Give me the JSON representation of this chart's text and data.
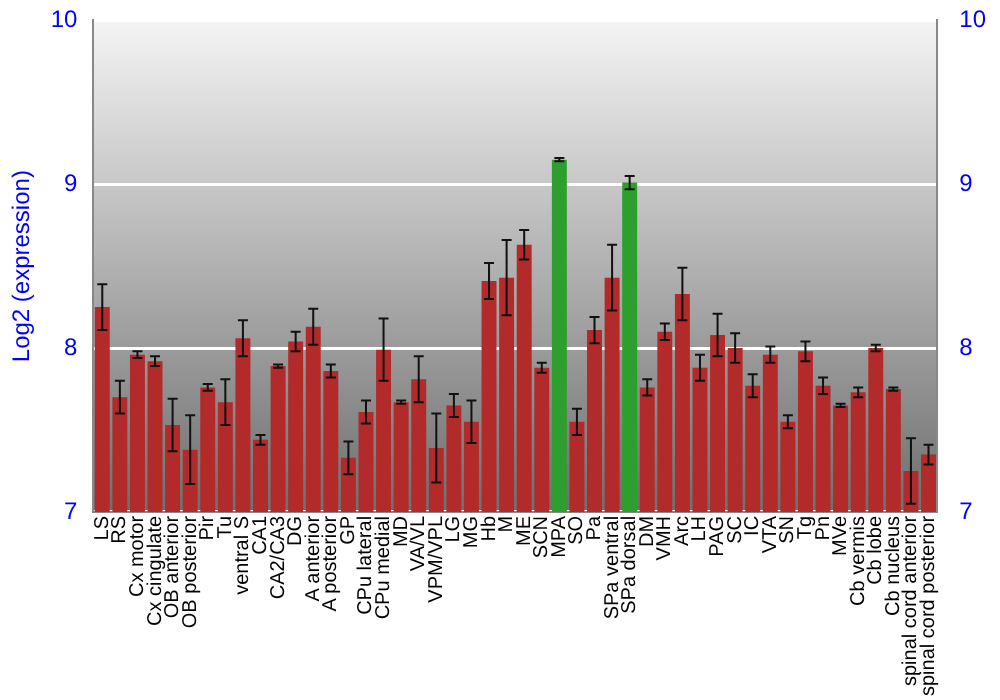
{
  "chart_data": {
    "type": "bar",
    "ylabel": "Log2 (expression)",
    "categories": [
      "LS",
      "RS",
      "Cx motor",
      "Cx cingulate",
      "OB anterior",
      "OB posterior",
      "Pir",
      "Tu",
      "ventral S",
      "CA1",
      "CA2/CA3",
      "DG",
      "A anterior",
      "A posterior",
      "GP",
      "CPu lateral",
      "CPu medial",
      "MD",
      "VA/VL",
      "VPM/VPL",
      "LG",
      "MG",
      "Hb",
      "M",
      "ME",
      "SCN",
      "MPA",
      "SO",
      "Pa",
      "SPa ventral",
      "SPa dorsal",
      "DM",
      "VMH",
      "Arc",
      "LH",
      "PAG",
      "SC",
      "IC",
      "VTA",
      "SN",
      "Tg",
      "Pn",
      "MVe",
      "Cb vermis",
      "Cb lobe",
      "Cb nucleus",
      "spinal cord anterior",
      "spinal cord posterior"
    ],
    "values": [
      8.25,
      7.7,
      7.96,
      7.92,
      7.53,
      7.38,
      7.76,
      7.67,
      8.06,
      7.44,
      7.89,
      8.04,
      8.13,
      7.86,
      7.33,
      7.61,
      7.99,
      7.67,
      7.81,
      7.39,
      7.65,
      7.55,
      8.41,
      8.43,
      8.63,
      7.88,
      9.15,
      7.55,
      8.11,
      8.43,
      9.01,
      7.76,
      8.1,
      8.33,
      7.88,
      8.08,
      8.0,
      7.77,
      7.96,
      7.55,
      7.98,
      7.77,
      7.65,
      7.73,
      8.0,
      7.75,
      7.25,
      7.35
    ],
    "errors": [
      0.14,
      0.1,
      0.02,
      0.03,
      0.16,
      0.21,
      0.02,
      0.14,
      0.11,
      0.03,
      0.01,
      0.06,
      0.11,
      0.04,
      0.1,
      0.07,
      0.19,
      0.01,
      0.14,
      0.21,
      0.07,
      0.13,
      0.11,
      0.23,
      0.09,
      0.03,
      0.01,
      0.08,
      0.08,
      0.2,
      0.04,
      0.05,
      0.05,
      0.16,
      0.08,
      0.13,
      0.09,
      0.07,
      0.05,
      0.04,
      0.06,
      0.05,
      0.01,
      0.03,
      0.02,
      0.01,
      0.2,
      0.06
    ],
    "colors": [
      "#b22a2a",
      "#b22a2a",
      "#b22a2a",
      "#b22a2a",
      "#b22a2a",
      "#b22a2a",
      "#b22a2a",
      "#b22a2a",
      "#b22a2a",
      "#b22a2a",
      "#b22a2a",
      "#b22a2a",
      "#b22a2a",
      "#b22a2a",
      "#b22a2a",
      "#b22a2a",
      "#b22a2a",
      "#b22a2a",
      "#b22a2a",
      "#b22a2a",
      "#b22a2a",
      "#b22a2a",
      "#b22a2a",
      "#b22a2a",
      "#b22a2a",
      "#b22a2a",
      "#2e9e2e",
      "#b22a2a",
      "#b22a2a",
      "#b22a2a",
      "#2e9e2e",
      "#b22a2a",
      "#b22a2a",
      "#b22a2a",
      "#b22a2a",
      "#b22a2a",
      "#b22a2a",
      "#b22a2a",
      "#b22a2a",
      "#b22a2a",
      "#b22a2a",
      "#b22a2a",
      "#b22a2a",
      "#b22a2a",
      "#b22a2a",
      "#b22a2a",
      "#b22a2a",
      "#b22a2a"
    ],
    "ylim": [
      7,
      10
    ],
    "yticks": [
      7,
      8,
      9,
      10
    ],
    "y2lim": [
      7,
      10
    ],
    "y2ticks": [
      7,
      8,
      9,
      10
    ],
    "grid": "y",
    "legend": false
  }
}
